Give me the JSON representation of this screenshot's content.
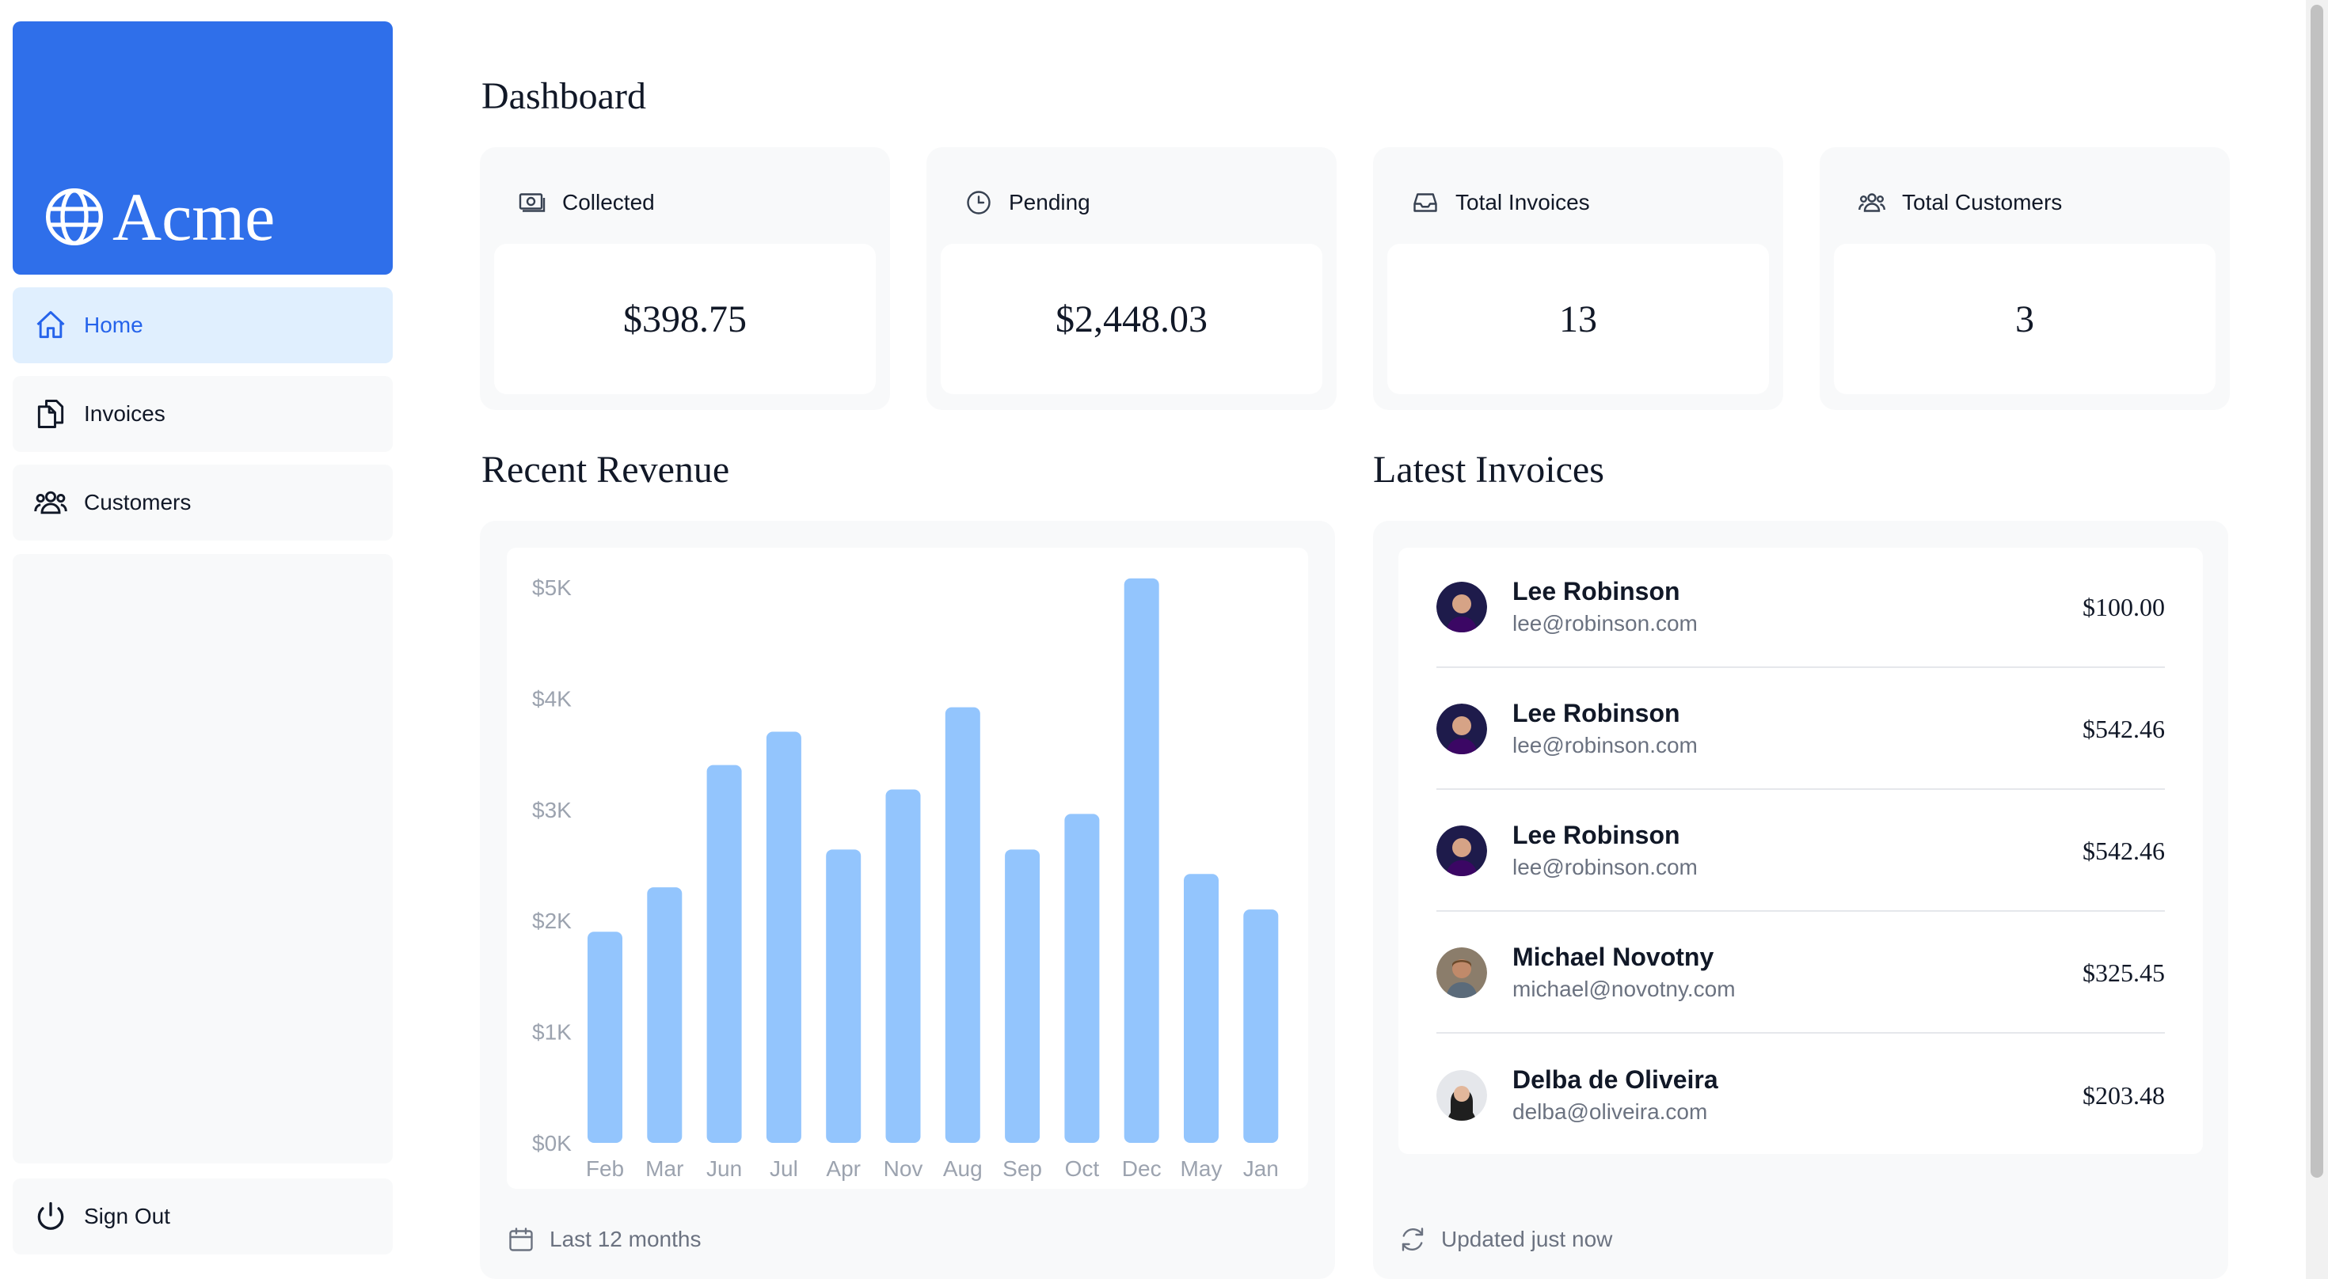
{
  "brand": {
    "name": "Acme",
    "icon": "globe-icon",
    "color": "#2f6fea"
  },
  "nav": {
    "items": [
      {
        "label": "Home",
        "icon": "home-icon",
        "active": true
      },
      {
        "label": "Invoices",
        "icon": "document-icon",
        "active": false
      },
      {
        "label": "Customers",
        "icon": "users-icon",
        "active": false
      }
    ],
    "sign_out": {
      "label": "Sign Out",
      "icon": "power-icon"
    }
  },
  "page": {
    "title": "Dashboard"
  },
  "cards": [
    {
      "title": "Collected",
      "icon": "banknotes-icon",
      "value": "$398.75"
    },
    {
      "title": "Pending",
      "icon": "clock-icon",
      "value": "$2,448.03"
    },
    {
      "title": "Total Invoices",
      "icon": "inbox-icon",
      "value": "13"
    },
    {
      "title": "Total Customers",
      "icon": "users-icon",
      "value": "3"
    }
  ],
  "revenue": {
    "heading": "Recent Revenue",
    "footer": "Last 12 months",
    "footer_icon": "calendar-icon"
  },
  "chart_data": {
    "type": "bar",
    "categories": [
      "Feb",
      "Mar",
      "Jun",
      "Jul",
      "Apr",
      "Nov",
      "Aug",
      "Sep",
      "Oct",
      "Dec",
      "May",
      "Jan"
    ],
    "values": [
      1900,
      2300,
      3400,
      3700,
      2640,
      3180,
      3920,
      2640,
      2960,
      5080,
      2420,
      2100
    ],
    "yticks": [
      "$0K",
      "$1K",
      "$2K",
      "$3K",
      "$4K",
      "$5K"
    ],
    "ylim": [
      0,
      5000
    ],
    "bar_color": "#93c5fd",
    "title": "",
    "xlabel": "",
    "ylabel": ""
  },
  "latest": {
    "heading": "Latest Invoices",
    "footer": "Updated just now",
    "footer_icon": "refresh-icon",
    "invoices": [
      {
        "name": "Lee Robinson",
        "email": "lee@robinson.com",
        "amount": "$100.00"
      },
      {
        "name": "Lee Robinson",
        "email": "lee@robinson.com",
        "amount": "$542.46"
      },
      {
        "name": "Lee Robinson",
        "email": "lee@robinson.com",
        "amount": "$542.46"
      },
      {
        "name": "Michael Novotny",
        "email": "michael@novotny.com",
        "amount": "$325.45"
      },
      {
        "name": "Delba de Oliveira",
        "email": "delba@oliveira.com",
        "amount": "$203.48"
      }
    ]
  }
}
